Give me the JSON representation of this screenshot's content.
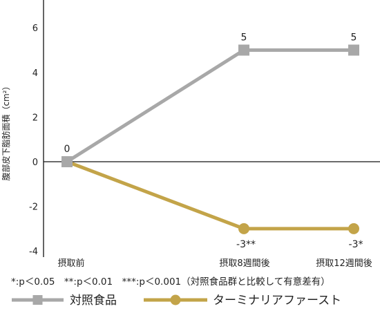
{
  "chart_data": {
    "type": "line",
    "ylabel": "腹部皮下脂肪面積（cm²）",
    "ylim": [
      -4.6,
      7.3
    ],
    "yticks": [
      6,
      4,
      2,
      0,
      -2,
      -4
    ],
    "ytick_labels": [
      "6",
      "4",
      "2",
      "0",
      "-2",
      "-4"
    ],
    "categories": [
      "摂取前",
      "摂取8週間後",
      "摂取12週間後"
    ],
    "series": [
      {
        "name": "対照食品",
        "values": [
          0,
          5,
          5
        ],
        "labels": [
          "0",
          "5",
          "5"
        ],
        "marker": "square",
        "color": "#a8a8a8"
      },
      {
        "name": "ターミナリアファースト",
        "values": [
          0,
          -3,
          -3
        ],
        "labels": [
          "",
          "-3**",
          "-3*"
        ],
        "marker": "circle",
        "color": "#c3a449"
      }
    ],
    "footnote": "*:p＜0.05　**:p＜0.01　***:p＜0.001（対照食品群と比較して有意差有）",
    "grid": false,
    "legend": "bottom"
  }
}
